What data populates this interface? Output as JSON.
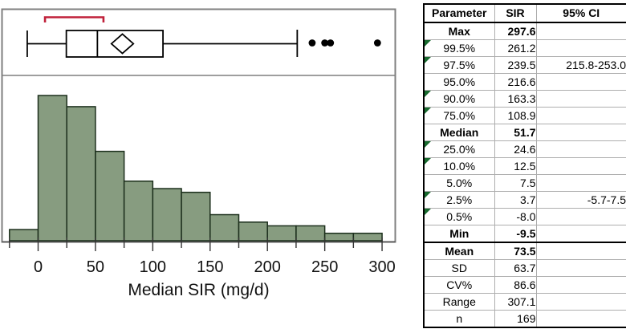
{
  "colors": {
    "bar_fill": "#879C80",
    "bar_stroke": "#1C2F1C",
    "frame_gray": "#7F7F7F",
    "bracket_red": "#C0203A",
    "flag_green": "#186A2E",
    "ink": "#000000",
    "grid_line": "#AEAEAE"
  },
  "chart_data": [
    {
      "type": "boxplot",
      "orientation": "horizontal",
      "variable": "Median SIR (mg/d)",
      "stats": {
        "min": -9.5,
        "q1": 24.6,
        "median": 51.7,
        "q3": 108.9,
        "upper_whisker_end": 226,
        "max": 297.6
      },
      "mean": 73.5,
      "mean_ci_diamond": [
        63.9,
        83.1
      ],
      "shortest_half_bracket": [
        6,
        57
      ],
      "outliers": [
        239,
        250,
        255,
        296
      ],
      "xlim": [
        -31.5,
        311.5
      ]
    },
    {
      "type": "histogram",
      "xlabel": "Median SIR (mg/d)",
      "ylabel": "",
      "bin_width": 25,
      "bin_edges": [
        -25,
        0,
        25,
        50,
        75,
        100,
        125,
        150,
        175,
        200,
        225,
        250,
        275,
        300
      ],
      "counts_estimated": [
        3,
        39,
        36,
        24,
        16,
        14,
        13,
        7,
        5,
        4,
        4,
        2,
        2
      ],
      "n_total": 169,
      "xticks_major": [
        0,
        50,
        100,
        150,
        200,
        250,
        300
      ],
      "xtick_minor_step": 25,
      "xlim": [
        -31.5,
        311.5
      ],
      "grid": false,
      "legend": null
    }
  ],
  "table": {
    "columns": [
      "Parameter",
      "SIR",
      "95% CI"
    ],
    "rows": [
      {
        "param": "Max",
        "sir": "297.6",
        "ci": "",
        "bold": true,
        "flag": false,
        "section": false
      },
      {
        "param": "99.5%",
        "sir": "261.2",
        "ci": "",
        "bold": false,
        "flag": true,
        "section": false
      },
      {
        "param": "97.5%",
        "sir": "239.5",
        "ci": "215.8-253.0",
        "bold": false,
        "flag": true,
        "section": false
      },
      {
        "param": "95.0%",
        "sir": "216.6",
        "ci": "",
        "bold": false,
        "flag": false,
        "section": false
      },
      {
        "param": "90.0%",
        "sir": "163.3",
        "ci": "",
        "bold": false,
        "flag": true,
        "section": false
      },
      {
        "param": "75.0%",
        "sir": "108.9",
        "ci": "",
        "bold": false,
        "flag": true,
        "section": false
      },
      {
        "param": "Median",
        "sir": "51.7",
        "ci": "",
        "bold": true,
        "flag": false,
        "section": false
      },
      {
        "param": "25.0%",
        "sir": "24.6",
        "ci": "",
        "bold": false,
        "flag": true,
        "section": false
      },
      {
        "param": "10.0%",
        "sir": "12.5",
        "ci": "",
        "bold": false,
        "flag": true,
        "section": false
      },
      {
        "param": "5.0%",
        "sir": "7.5",
        "ci": "",
        "bold": false,
        "flag": false,
        "section": false
      },
      {
        "param": "2.5%",
        "sir": "3.7",
        "ci": "-5.7-7.5",
        "bold": false,
        "flag": true,
        "section": false
      },
      {
        "param": "0.5%",
        "sir": "-8.0",
        "ci": "",
        "bold": false,
        "flag": true,
        "section": false
      },
      {
        "param": "Min",
        "sir": "-9.5",
        "ci": "",
        "bold": true,
        "flag": false,
        "section": false
      },
      {
        "param": "Mean",
        "sir": "73.5",
        "ci": "",
        "bold": true,
        "flag": false,
        "section": true
      },
      {
        "param": "SD",
        "sir": "63.7",
        "ci": "",
        "bold": false,
        "flag": false,
        "section": false
      },
      {
        "param": "CV%",
        "sir": "86.6",
        "ci": "",
        "bold": false,
        "flag": false,
        "section": false
      },
      {
        "param": "Range",
        "sir": "307.1",
        "ci": "",
        "bold": false,
        "flag": false,
        "section": false
      },
      {
        "param": "n",
        "sir": "169",
        "ci": "",
        "bold": false,
        "flag": false,
        "section": false
      }
    ]
  }
}
